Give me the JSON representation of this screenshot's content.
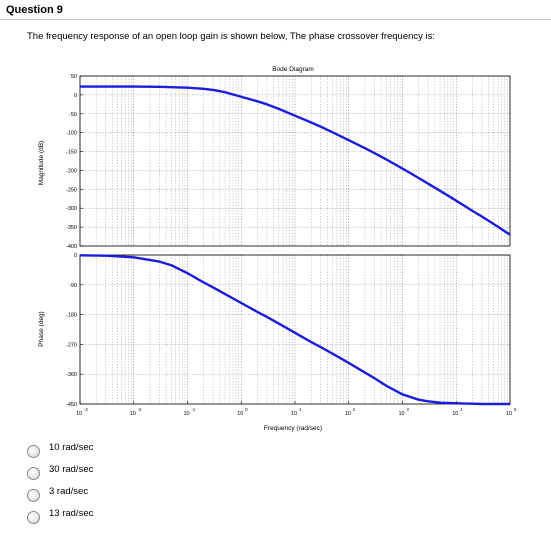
{
  "question": {
    "title": "Question 9",
    "prompt": "The frequency response of an open loop gain is shown below, The phase crossover frequency is:"
  },
  "chart_data": {
    "type": "line",
    "title": "Bode Diagram",
    "xlabel": "Frequency (rad/sec)",
    "x_scale": "log",
    "xlim": [
      0.001,
      100000
    ],
    "x_tick_labels": [
      {
        "base": "10",
        "exp": "-3"
      },
      {
        "base": "10",
        "exp": "-2"
      },
      {
        "base": "10",
        "exp": "-1"
      },
      {
        "base": "10",
        "exp": "0"
      },
      {
        "base": "10",
        "exp": "1"
      },
      {
        "base": "10",
        "exp": "2"
      },
      {
        "base": "10",
        "exp": "3"
      },
      {
        "base": "10",
        "exp": "4"
      },
      {
        "base": "10",
        "exp": "5"
      }
    ],
    "grid": true,
    "line_color": "#1c1cdc",
    "magnitude": {
      "ylabel": "Magnitude (dB)",
      "ylim": [
        -400,
        50
      ],
      "yticks": [
        "50",
        "0",
        "-50",
        "-100",
        "-150",
        "-200",
        "-250",
        "-300",
        "-350",
        "-400"
      ],
      "x": [
        0.001,
        0.003,
        0.01,
        0.03,
        0.1,
        0.2,
        0.3,
        0.5,
        1,
        2,
        3,
        5,
        10,
        20,
        30,
        50,
        100,
        200,
        300,
        500,
        1000,
        2000,
        3000,
        5000,
        10000,
        20000,
        30000,
        50000,
        100000
      ],
      "y": [
        22,
        22,
        22,
        21.5,
        19,
        16,
        13,
        7,
        -5,
        -17,
        -25,
        -37,
        -55,
        -73,
        -84,
        -99,
        -120,
        -141,
        -154,
        -171,
        -195,
        -220,
        -235,
        -254,
        -280,
        -307,
        -322,
        -342,
        -370
      ]
    },
    "phase": {
      "ylabel": "Phase (deg)",
      "ylim": [
        -450,
        0
      ],
      "yticks": [
        "0",
        "-90",
        "-180",
        "-270",
        "-360",
        "-450"
      ],
      "x": [
        0.001,
        0.003,
        0.01,
        0.03,
        0.05,
        0.1,
        0.2,
        0.3,
        0.5,
        1,
        2,
        3,
        5,
        10,
        20,
        30,
        50,
        100,
        200,
        300,
        500,
        1000,
        2000,
        3000,
        5000,
        10000,
        20000,
        30000,
        50000,
        100000
      ],
      "y": [
        -1,
        -2,
        -7,
        -20,
        -31,
        -55,
        -83,
        -98,
        -118,
        -145,
        -172,
        -187,
        -207,
        -235,
        -263,
        -278,
        -298,
        -326,
        -355,
        -372,
        -395,
        -421,
        -437,
        -442,
        -446,
        -448,
        -449,
        -450,
        -450,
        -450
      ]
    }
  },
  "options": [
    {
      "label": "10 rad/sec"
    },
    {
      "label": "30  rad/sec"
    },
    {
      "label": "3 rad/sec"
    },
    {
      "label": "13 rad/sec"
    }
  ]
}
